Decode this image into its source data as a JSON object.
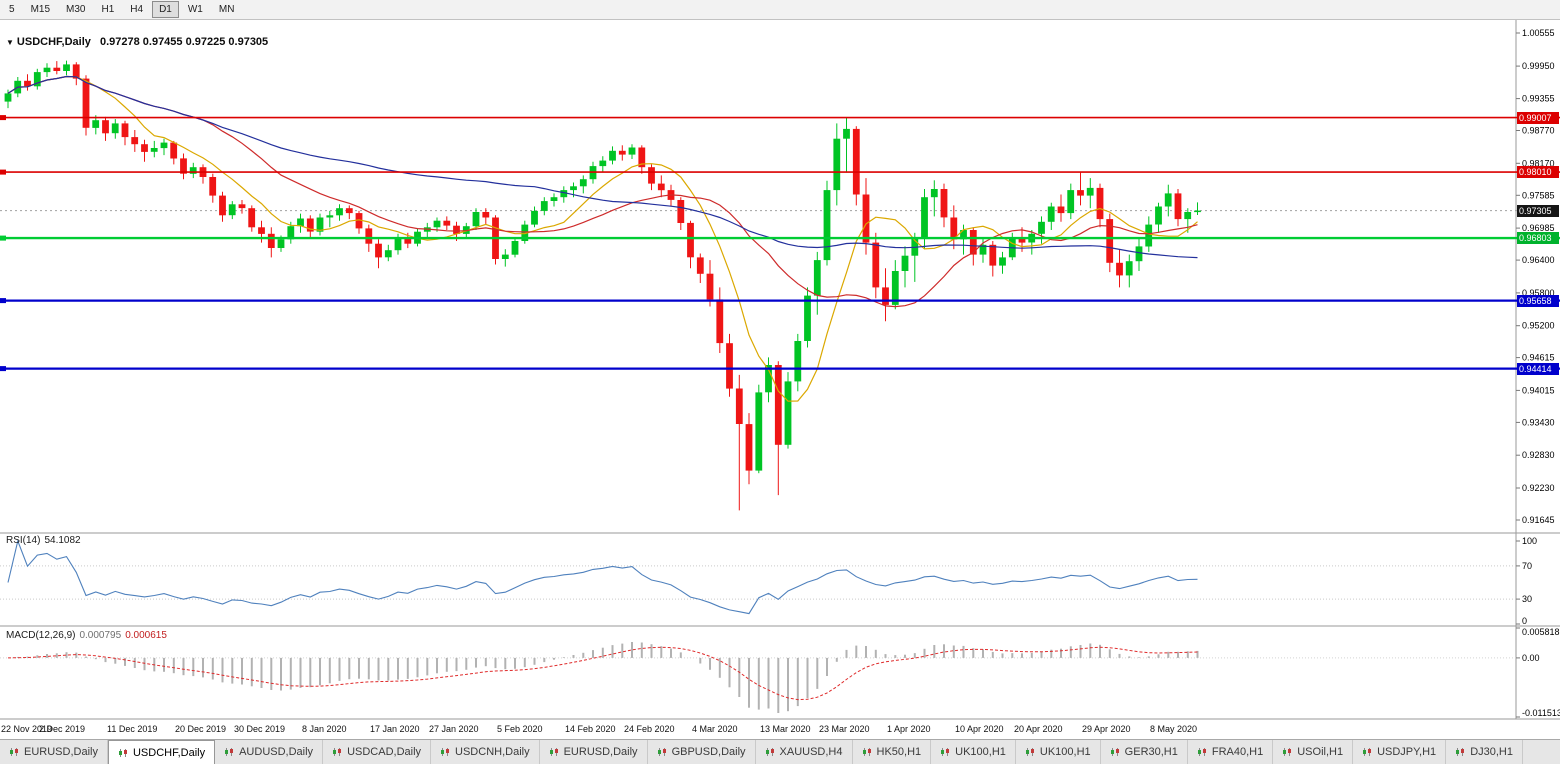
{
  "toolbar": {
    "timeframes": [
      "5",
      "M15",
      "M30",
      "H1",
      "H4",
      "D1",
      "W1",
      "MN"
    ],
    "active": "D1"
  },
  "chart_header": {
    "dropdown_icon": "▼",
    "symbol": "USDCHF,Daily",
    "ohlc": "0.97278 0.97455 0.97225 0.97305"
  },
  "rsi_panel": {
    "name": "RSI(14)",
    "value": "54.1082",
    "axis": [
      "100",
      "70",
      "30",
      "0"
    ],
    "levels": [
      70,
      30
    ],
    "color": "#4F81BD"
  },
  "macd_panel": {
    "name": "MACD(12,26,9)",
    "value_main": "0.000795",
    "value_signal": "0.000615",
    "axis": [
      "0.005818",
      "0.00",
      "-0.011513"
    ],
    "scale": [
      -0.011513,
      0.005818
    ],
    "hist_color": "#B2B2B2",
    "signal_color": "#DF2B2B"
  },
  "price_axis": {
    "ticks": [
      "1.00555",
      "0.99950",
      "0.99355",
      "0.98770",
      "0.98170",
      "0.97585",
      "0.96985",
      "0.96400",
      "0.95800",
      "0.95200",
      "0.94615",
      "0.94015",
      "0.93430",
      "0.92830",
      "0.92230",
      "0.91645"
    ],
    "markers": [
      {
        "text": "0.99007",
        "price": 0.99007,
        "bg": "#DC0000"
      },
      {
        "text": "0.98010",
        "price": 0.9801,
        "bg": "#DC0000"
      },
      {
        "text": "0.97305",
        "price": 0.97305,
        "bg": "#151515"
      },
      {
        "text": "0.96803",
        "price": 0.96803,
        "bg": "#00B22D"
      },
      {
        "text": "0.95658",
        "price": 0.95658,
        "bg": "#0000CC"
      },
      {
        "text": "0.94414",
        "price": 0.94414,
        "bg": "#0000CC"
      }
    ]
  },
  "chart_data": {
    "type": "candlestick",
    "symbol": "USDCHF",
    "timeframe": "Daily",
    "current": {
      "open": 0.97278,
      "high": 0.97455,
      "low": 0.97225,
      "close": 0.97305
    },
    "current_price": 0.97305,
    "ylim": [
      0.91425,
      1.00756
    ],
    "colors": {
      "bull": "#00C424",
      "bear": "#EF1515"
    },
    "ma": [
      {
        "period": 8,
        "color": "#DBA800"
      },
      {
        "period": 21,
        "color": "#CE2B2B"
      },
      {
        "period": 55,
        "color": "#23309C"
      }
    ],
    "hlines": [
      {
        "price": 0.99007,
        "color": "#DC0000",
        "width": 1.6
      },
      {
        "price": 0.9801,
        "color": "#DC0000",
        "width": 1.6
      },
      {
        "price": 0.96803,
        "color": "#00CC33",
        "width": 2.4
      },
      {
        "price": 0.95658,
        "color": "#0000CC",
        "width": 2.2
      },
      {
        "price": 0.94414,
        "color": "#0000CC",
        "width": 2.2
      }
    ],
    "x_labels": [
      {
        "text": "22 Nov 2019",
        "index": 0
      },
      {
        "text": "2 Dec 2019",
        "index": 6
      },
      {
        "text": "11 Dec 2019",
        "index": 13
      },
      {
        "text": "20 Dec 2019",
        "index": 20
      },
      {
        "text": "30 Dec 2019",
        "index": 26
      },
      {
        "text": "8 Jan 2020",
        "index": 33
      },
      {
        "text": "17 Jan 2020",
        "index": 40
      },
      {
        "text": "27 Jan 2020",
        "index": 46
      },
      {
        "text": "5 Feb 2020",
        "index": 53
      },
      {
        "text": "14 Feb 2020",
        "index": 60
      },
      {
        "text": "24 Feb 2020",
        "index": 66
      },
      {
        "text": "4 Mar 2020",
        "index": 73
      },
      {
        "text": "13 Mar 2020",
        "index": 80
      },
      {
        "text": "23 Mar 2020",
        "index": 86
      },
      {
        "text": "1 Apr 2020",
        "index": 93
      },
      {
        "text": "10 Apr 2020",
        "index": 100
      },
      {
        "text": "20 Apr 2020",
        "index": 106
      },
      {
        "text": "29 Apr 2020",
        "index": 113
      },
      {
        "text": "8 May 2020",
        "index": 120
      }
    ],
    "candles": [
      [
        0.993,
        0.9952,
        0.9918,
        0.9945
      ],
      [
        0.9945,
        0.9975,
        0.9938,
        0.9968
      ],
      [
        0.9968,
        0.998,
        0.995,
        0.9958
      ],
      [
        0.9958,
        0.999,
        0.9952,
        0.9984
      ],
      [
        0.9984,
        1.0,
        0.9975,
        0.9992
      ],
      [
        0.9992,
        1.0004,
        0.998,
        0.9986
      ],
      [
        0.9986,
        1.0005,
        0.9978,
        0.9998
      ],
      [
        0.9998,
        1.0002,
        0.996,
        0.9972
      ],
      [
        0.9972,
        0.9978,
        0.9868,
        0.9882
      ],
      [
        0.9882,
        0.9905,
        0.987,
        0.9896
      ],
      [
        0.9896,
        0.9902,
        0.9858,
        0.9872
      ],
      [
        0.9872,
        0.9898,
        0.9862,
        0.989
      ],
      [
        0.989,
        0.9895,
        0.985,
        0.9865
      ],
      [
        0.9865,
        0.9878,
        0.9838,
        0.9852
      ],
      [
        0.9852,
        0.986,
        0.982,
        0.9838
      ],
      [
        0.9838,
        0.9858,
        0.9828,
        0.9845
      ],
      [
        0.9845,
        0.9862,
        0.9832,
        0.9855
      ],
      [
        0.9855,
        0.9858,
        0.9815,
        0.9826
      ],
      [
        0.9826,
        0.9835,
        0.9788,
        0.9798
      ],
      [
        0.9798,
        0.9818,
        0.979,
        0.981
      ],
      [
        0.981,
        0.9815,
        0.978,
        0.9792
      ],
      [
        0.9792,
        0.9798,
        0.9745,
        0.9758
      ],
      [
        0.9758,
        0.9765,
        0.971,
        0.9722
      ],
      [
        0.9722,
        0.9748,
        0.9715,
        0.9742
      ],
      [
        0.9742,
        0.975,
        0.9725,
        0.9735
      ],
      [
        0.9735,
        0.974,
        0.9692,
        0.97
      ],
      [
        0.97,
        0.9712,
        0.9672,
        0.9688
      ],
      [
        0.9688,
        0.97,
        0.9645,
        0.9662
      ],
      [
        0.9662,
        0.9685,
        0.9655,
        0.9678
      ],
      [
        0.9678,
        0.971,
        0.967,
        0.9702
      ],
      [
        0.9702,
        0.9725,
        0.969,
        0.9716
      ],
      [
        0.9716,
        0.9722,
        0.968,
        0.9692
      ],
      [
        0.9692,
        0.9725,
        0.9685,
        0.9718
      ],
      [
        0.9718,
        0.973,
        0.97,
        0.9722
      ],
      [
        0.9722,
        0.9742,
        0.9712,
        0.9735
      ],
      [
        0.9735,
        0.974,
        0.9715,
        0.9726
      ],
      [
        0.9726,
        0.973,
        0.9688,
        0.9698
      ],
      [
        0.9698,
        0.9705,
        0.9655,
        0.967
      ],
      [
        0.967,
        0.9678,
        0.9625,
        0.9645
      ],
      [
        0.9645,
        0.9668,
        0.9638,
        0.9658
      ],
      [
        0.9658,
        0.9688,
        0.965,
        0.968
      ],
      [
        0.968,
        0.969,
        0.9662,
        0.967
      ],
      [
        0.967,
        0.9698,
        0.9665,
        0.9692
      ],
      [
        0.9692,
        0.9708,
        0.9682,
        0.97
      ],
      [
        0.97,
        0.9718,
        0.9692,
        0.9712
      ],
      [
        0.9712,
        0.972,
        0.9695,
        0.9703
      ],
      [
        0.9703,
        0.971,
        0.9675,
        0.9688
      ],
      [
        0.9688,
        0.9708,
        0.968,
        0.9702
      ],
      [
        0.9702,
        0.9735,
        0.9695,
        0.9728
      ],
      [
        0.9728,
        0.9735,
        0.9705,
        0.9718
      ],
      [
        0.9718,
        0.9722,
        0.9632,
        0.9642
      ],
      [
        0.9642,
        0.966,
        0.9628,
        0.965
      ],
      [
        0.965,
        0.9682,
        0.9645,
        0.9675
      ],
      [
        0.9675,
        0.9712,
        0.967,
        0.9705
      ],
      [
        0.9705,
        0.9738,
        0.97,
        0.973
      ],
      [
        0.973,
        0.9755,
        0.9722,
        0.9748
      ],
      [
        0.9748,
        0.9762,
        0.9738,
        0.9755
      ],
      [
        0.9755,
        0.9775,
        0.9745,
        0.9768
      ],
      [
        0.9768,
        0.9782,
        0.9755,
        0.9775
      ],
      [
        0.9775,
        0.9795,
        0.9762,
        0.9788
      ],
      [
        0.9788,
        0.982,
        0.978,
        0.9812
      ],
      [
        0.9812,
        0.983,
        0.9802,
        0.9822
      ],
      [
        0.9822,
        0.9848,
        0.9815,
        0.984
      ],
      [
        0.984,
        0.985,
        0.9822,
        0.9833
      ],
      [
        0.9833,
        0.9852,
        0.9825,
        0.9846
      ],
      [
        0.9846,
        0.985,
        0.9798,
        0.981
      ],
      [
        0.981,
        0.9815,
        0.9768,
        0.978
      ],
      [
        0.978,
        0.9795,
        0.9755,
        0.9768
      ],
      [
        0.9768,
        0.9778,
        0.9738,
        0.975
      ],
      [
        0.975,
        0.9755,
        0.9695,
        0.9708
      ],
      [
        0.9708,
        0.9712,
        0.9625,
        0.9645
      ],
      [
        0.9645,
        0.9652,
        0.9598,
        0.9615
      ],
      [
        0.9615,
        0.964,
        0.9555,
        0.9568
      ],
      [
        0.9568,
        0.959,
        0.947,
        0.9488
      ],
      [
        0.9488,
        0.9505,
        0.939,
        0.9405
      ],
      [
        0.9405,
        0.943,
        0.9182,
        0.934
      ],
      [
        0.934,
        0.936,
        0.923,
        0.9255
      ],
      [
        0.9255,
        0.9412,
        0.925,
        0.9398
      ],
      [
        0.9398,
        0.9462,
        0.938,
        0.9448
      ],
      [
        0.9448,
        0.9455,
        0.921,
        0.9302
      ],
      [
        0.9302,
        0.9435,
        0.9295,
        0.9418
      ],
      [
        0.9418,
        0.9505,
        0.94,
        0.9492
      ],
      [
        0.9492,
        0.959,
        0.948,
        0.9575
      ],
      [
        0.9575,
        0.9655,
        0.954,
        0.964
      ],
      [
        0.964,
        0.9785,
        0.963,
        0.9768
      ],
      [
        0.9768,
        0.989,
        0.974,
        0.9862
      ],
      [
        0.9862,
        0.9901,
        0.98,
        0.988
      ],
      [
        0.988,
        0.9885,
        0.974,
        0.976
      ],
      [
        0.976,
        0.979,
        0.965,
        0.9672
      ],
      [
        0.9672,
        0.969,
        0.957,
        0.959
      ],
      [
        0.959,
        0.9625,
        0.9528,
        0.9558
      ],
      [
        0.9558,
        0.964,
        0.955,
        0.962
      ],
      [
        0.962,
        0.9665,
        0.959,
        0.9648
      ],
      [
        0.9648,
        0.969,
        0.96,
        0.968
      ],
      [
        0.968,
        0.977,
        0.966,
        0.9755
      ],
      [
        0.9755,
        0.9786,
        0.972,
        0.977
      ],
      [
        0.977,
        0.978,
        0.97,
        0.9718
      ],
      [
        0.9718,
        0.974,
        0.966,
        0.9678
      ],
      [
        0.9678,
        0.9705,
        0.965,
        0.9695
      ],
      [
        0.9695,
        0.97,
        0.963,
        0.965
      ],
      [
        0.965,
        0.968,
        0.9635,
        0.9668
      ],
      [
        0.9668,
        0.9675,
        0.961,
        0.963
      ],
      [
        0.963,
        0.9655,
        0.9615,
        0.9645
      ],
      [
        0.9645,
        0.969,
        0.964,
        0.968
      ],
      [
        0.968,
        0.97,
        0.9655,
        0.9672
      ],
      [
        0.9672,
        0.9695,
        0.965,
        0.9688
      ],
      [
        0.9688,
        0.972,
        0.967,
        0.971
      ],
      [
        0.971,
        0.9745,
        0.9695,
        0.9738
      ],
      [
        0.9738,
        0.976,
        0.971,
        0.9726
      ],
      [
        0.9726,
        0.978,
        0.9715,
        0.9768
      ],
      [
        0.9768,
        0.98,
        0.974,
        0.9758
      ],
      [
        0.9758,
        0.979,
        0.9735,
        0.9772
      ],
      [
        0.9772,
        0.978,
        0.97,
        0.9715
      ],
      [
        0.9715,
        0.9725,
        0.9618,
        0.9635
      ],
      [
        0.9635,
        0.966,
        0.959,
        0.9612
      ],
      [
        0.9612,
        0.965,
        0.959,
        0.9638
      ],
      [
        0.9638,
        0.968,
        0.962,
        0.9665
      ],
      [
        0.9665,
        0.972,
        0.9655,
        0.9705
      ],
      [
        0.9705,
        0.9745,
        0.969,
        0.9738
      ],
      [
        0.9738,
        0.9778,
        0.972,
        0.9762
      ],
      [
        0.9762,
        0.977,
        0.9702,
        0.9715
      ],
      [
        0.9715,
        0.9735,
        0.969,
        0.9728
      ],
      [
        0.97278,
        0.97455,
        0.97225,
        0.97305
      ]
    ]
  },
  "tabs": [
    {
      "label": "EURUSD,Daily",
      "active": false
    },
    {
      "label": "USDCHF,Daily",
      "active": true
    },
    {
      "label": "AUDUSD,Daily",
      "active": false
    },
    {
      "label": "USDCAD,Daily",
      "active": false
    },
    {
      "label": "USDCNH,Daily",
      "active": false
    },
    {
      "label": "EURUSD,Daily",
      "active": false
    },
    {
      "label": "GBPUSD,Daily",
      "active": false
    },
    {
      "label": "XAUUSD,H4",
      "active": false
    },
    {
      "label": "HK50,H1",
      "active": false
    },
    {
      "label": "UK100,H1",
      "active": false
    },
    {
      "label": "UK100,H1",
      "active": false
    },
    {
      "label": "GER30,H1",
      "active": false
    },
    {
      "label": "FRA40,H1",
      "active": false
    },
    {
      "label": "USOil,H1",
      "active": false
    },
    {
      "label": "USDJPY,H1",
      "active": false
    },
    {
      "label": "DJ30,H1",
      "active": false
    }
  ]
}
